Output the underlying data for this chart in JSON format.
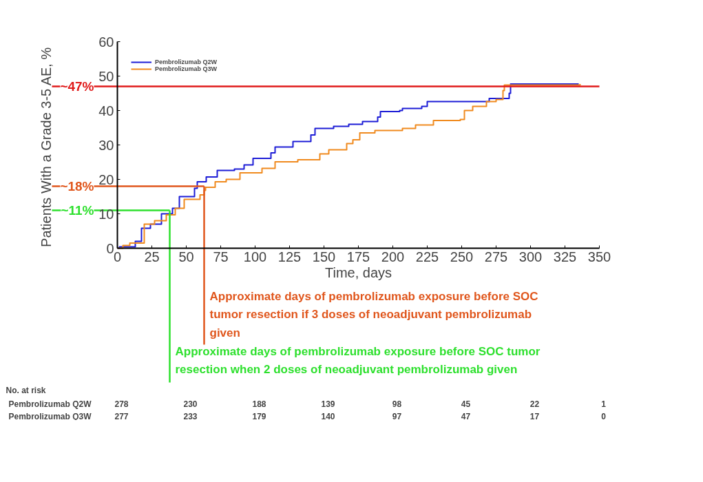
{
  "chart_data": {
    "type": "step",
    "ylabel": "Patients With  a Grade 3-5 AE, %",
    "xlabel": "Time, days",
    "xlim": [
      0,
      350
    ],
    "xticks": [
      0,
      25,
      50,
      75,
      100,
      125,
      150,
      175,
      200,
      225,
      250,
      275,
      300,
      325,
      350
    ],
    "ylim": [
      0,
      60
    ],
    "yticks": [
      0,
      10,
      20,
      30,
      40,
      50,
      60
    ],
    "grid": false,
    "legend": "top left",
    "series": [
      {
        "name": "Pembrolizumab Q2W",
        "color": "#1c1cd6",
        "x": [
          0,
          1.5,
          13,
          17.5,
          24,
          32,
          40,
          45,
          56,
          58,
          64.5,
          72.5,
          85,
          92,
          98.5,
          111.5,
          114.5,
          127.5,
          140.5,
          143.5,
          157,
          168,
          178,
          189,
          191,
          205,
          207,
          221,
          225,
          268,
          270,
          281,
          284.5,
          285.5,
          335
        ],
        "values": [
          0,
          0.4,
          2,
          5.8,
          7,
          10,
          11.6,
          15,
          17.4,
          19.3,
          20.7,
          22.6,
          23,
          24.2,
          26.1,
          27.7,
          29.4,
          31,
          32.9,
          34.8,
          35.4,
          36,
          36.8,
          38.1,
          39.7,
          40,
          40.6,
          41.2,
          42.6,
          42.6,
          43.5,
          43.5,
          45,
          47.7,
          47.7
        ]
      },
      {
        "name": "Pembrolizumab Q3W",
        "color": "#f08a1e",
        "x": [
          0,
          4,
          9,
          19.5,
          27,
          35.5,
          42,
          48.5,
          60,
          63,
          64,
          71,
          79,
          89,
          105,
          114.5,
          131,
          147,
          153.5,
          166.5,
          171,
          176,
          187,
          207,
          216.5,
          229.5,
          249,
          252,
          258,
          268,
          275,
          280,
          281,
          336
        ],
        "values": [
          0,
          0.8,
          1.5,
          7,
          8,
          9.7,
          11.6,
          14.2,
          15.5,
          16.8,
          17.7,
          19.3,
          20,
          21.9,
          23.2,
          25.1,
          25.7,
          27.4,
          28.6,
          30.4,
          31.5,
          33.5,
          34.2,
          34.8,
          35.8,
          37.1,
          37.4,
          40,
          41.2,
          42.6,
          43.2,
          45.8,
          47.4,
          47.7
        ]
      }
    ],
    "ref_lines": [
      {
        "axis": "y",
        "value": 47,
        "label": "~47%",
        "color": "#e01a1a"
      },
      {
        "axis": "y",
        "value": 18,
        "label": "~18%",
        "color": "#e0561c"
      },
      {
        "axis": "y",
        "value": 11,
        "label": "~11%",
        "color": "#2ee02e"
      },
      {
        "axis": "x",
        "value": 63,
        "label": "Approximate days of pembrolizumab exposure before SOC tumor resection if 3 doses of neoadjuvant pembrolizumab given",
        "color": "#e0561c"
      },
      {
        "axis": "x",
        "value": 38,
        "label": "Approximate days of pembrolizumab exposure before SOC tumor resection when 2 doses of neoadjuvant pembrolizumab given",
        "color": "#2ee02e"
      }
    ],
    "annotations": [
      "No. at risk",
      "278",
      "230",
      "188",
      "139",
      "98",
      "45",
      "22",
      "1",
      "277",
      "233",
      "179",
      "140",
      "97",
      "47",
      "17",
      "0"
    ]
  }
}
